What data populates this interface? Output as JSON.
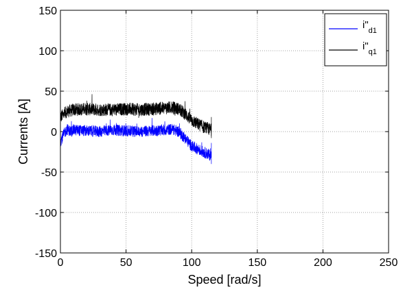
{
  "chart_data": {
    "type": "line",
    "xlabel": "Speed [rad/s]",
    "ylabel": "Currents [A]",
    "xlim": [
      0,
      250
    ],
    "ylim": [
      -150,
      150
    ],
    "x_ticks": [
      "0",
      "50",
      "100",
      "150",
      "200",
      "250"
    ],
    "y_ticks": [
      "150",
      "100",
      "50",
      "0",
      "-50",
      "-100",
      "-150"
    ],
    "grid": true,
    "legend_position": "top-right",
    "series": [
      {
        "name": "i\"d1",
        "name_main": "i\"",
        "name_sub": "d1",
        "color": "#0000ff",
        "x": [
          0,
          3,
          5,
          8,
          10,
          20,
          30,
          40,
          50,
          60,
          70,
          80,
          85,
          90,
          95,
          100,
          105,
          110,
          115
        ],
        "y": [
          -12,
          -2,
          3,
          0,
          2,
          1,
          0,
          2,
          1,
          0,
          1,
          2,
          3,
          0,
          -8,
          -18,
          -22,
          -26,
          -30
        ]
      },
      {
        "name": "i\"q1",
        "name_main": "i\"",
        "name_sub": "q1",
        "color": "#000000",
        "x": [
          0,
          3,
          5,
          8,
          10,
          20,
          30,
          40,
          50,
          60,
          70,
          80,
          85,
          90,
          95,
          100,
          105,
          110,
          115
        ],
        "y": [
          18,
          22,
          25,
          26,
          27,
          28,
          27,
          27,
          28,
          27,
          28,
          29,
          30,
          28,
          22,
          14,
          9,
          5,
          2
        ]
      }
    ]
  }
}
